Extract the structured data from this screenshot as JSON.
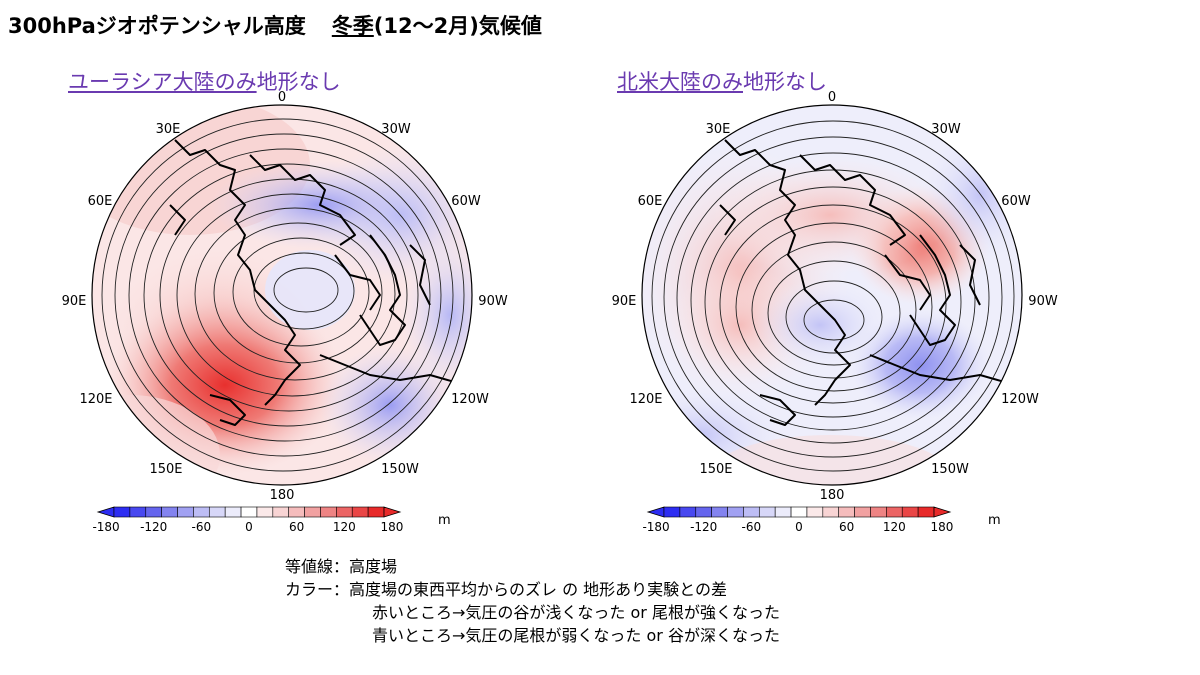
{
  "title": {
    "main": "300hPaジオポテンシャル高度",
    "season": "冬季",
    "months": "(12～2月)気候値"
  },
  "panels": [
    {
      "id": "eurasia",
      "label_underlined": "ユーラシア大陸のみ",
      "label_rest": "地形なし",
      "lon_labels": {
        "top": "0",
        "tl": "30E",
        "tr": "30W",
        "ul": "60E",
        "ur": "60W",
        "l": "90E",
        "r": "90W",
        "ll": "120E",
        "lr": "120W",
        "bl": "150E",
        "br": "150W",
        "bottom": "180"
      }
    },
    {
      "id": "namerica",
      "label_underlined": "北米大陸のみ",
      "label_rest": "地形なし",
      "lon_labels": {
        "top": "0",
        "tl": "30E",
        "tr": "30W",
        "ul": "60E",
        "ur": "60W",
        "l": "90E",
        "r": "90W",
        "ll": "120E",
        "lr": "120W",
        "bl": "150E",
        "br": "150W",
        "bottom": "180"
      }
    }
  ],
  "colorbar": {
    "ticks": [
      "-180",
      "-120",
      "-60",
      "0",
      "60",
      "120",
      "180"
    ],
    "unit": "m",
    "colors": [
      "#2d2df2",
      "#4848f0",
      "#6565ee",
      "#8383ef",
      "#a1a1f2",
      "#bdbdf5",
      "#d7d7f8",
      "#ececfb",
      "#ffffff",
      "#fbe9e9",
      "#f8d4d4",
      "#f5bcbc",
      "#f1a1a1",
      "#ee8484",
      "#ec6565",
      "#ea4646",
      "#e82a2a"
    ]
  },
  "notes": {
    "contour_label": "等値線：高度場",
    "color_label": "カラー：高度場の東西平均からのズレ の 地形あり実験との差",
    "red_note": "赤いところ→気圧の谷が浅くなった or 尾根が強くなった",
    "blue_note": "青いところ→気圧の尾根が弱くなった or 谷が深くなった"
  }
}
